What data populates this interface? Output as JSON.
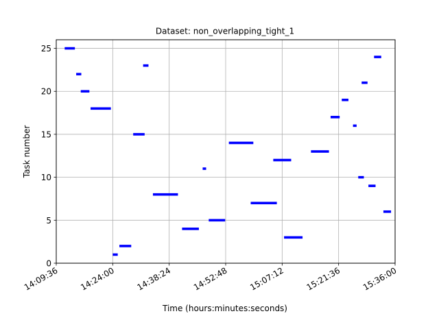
{
  "chart_data": {
    "type": "gantt",
    "title": "Dataset: non_overlapping_tight_1",
    "xlabel": "Time (hours:minutes:seconds)",
    "ylabel": "Task number",
    "x_axis_kind": "time",
    "xlim": [
      "14:09:36",
      "15:36:00"
    ],
    "ylim": [
      0,
      26
    ],
    "x_ticks": [
      "14:09:36",
      "14:24:00",
      "14:38:24",
      "14:52:48",
      "15:07:12",
      "15:21:36",
      "15:36:00"
    ],
    "y_ticks": [
      0,
      5,
      10,
      15,
      20,
      25
    ],
    "grid": true,
    "bar_color": "#0000ff",
    "tasks": [
      {
        "task": 1,
        "start": "14:24:00",
        "end": "14:25:17"
      },
      {
        "task": 2,
        "start": "14:25:42",
        "end": "14:28:43"
      },
      {
        "task": 3,
        "start": "15:07:41",
        "end": "15:12:24"
      },
      {
        "task": 4,
        "start": "14:41:41",
        "end": "14:45:58"
      },
      {
        "task": 5,
        "start": "14:48:29",
        "end": "14:52:40"
      },
      {
        "task": 6,
        "start": "15:33:01",
        "end": "15:34:58"
      },
      {
        "task": 7,
        "start": "14:59:11",
        "end": "15:05:51"
      },
      {
        "task": 8,
        "start": "14:34:15",
        "end": "14:40:38"
      },
      {
        "task": 9,
        "start": "15:29:12",
        "end": "15:31:01"
      },
      {
        "task": 10,
        "start": "15:26:36",
        "end": "15:28:02"
      },
      {
        "task": 11,
        "start": "14:46:56",
        "end": "14:47:49"
      },
      {
        "task": 12,
        "start": "15:04:56",
        "end": "15:09:30"
      },
      {
        "task": 13,
        "start": "15:14:33",
        "end": "15:19:08"
      },
      {
        "task": 14,
        "start": "14:53:37",
        "end": "14:59:51"
      },
      {
        "task": 15,
        "start": "14:29:13",
        "end": "14:32:08"
      },
      {
        "task": 16,
        "start": "15:25:16",
        "end": "15:26:11"
      },
      {
        "task": 17,
        "start": "15:19:33",
        "end": "15:21:52"
      },
      {
        "task": 18,
        "start": "14:18:21",
        "end": "14:23:32"
      },
      {
        "task": 19,
        "start": "15:22:24",
        "end": "15:24:06"
      },
      {
        "task": 20,
        "start": "14:15:51",
        "end": "14:18:03"
      },
      {
        "task": 21,
        "start": "15:27:28",
        "end": "15:28:58"
      },
      {
        "task": 22,
        "start": "14:14:41",
        "end": "14:15:59"
      },
      {
        "task": 23,
        "start": "14:31:45",
        "end": "14:33:07"
      },
      {
        "task": 24,
        "start": "15:30:38",
        "end": "15:32:28"
      },
      {
        "task": 25,
        "start": "14:11:45",
        "end": "14:14:21"
      }
    ]
  }
}
